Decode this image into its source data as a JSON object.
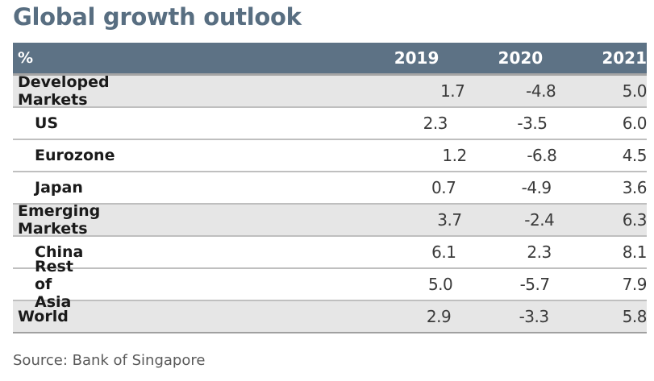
{
  "title": "Global growth outlook",
  "source": "Source: Bank of Singapore",
  "chart_data": {
    "type": "table",
    "title": "Global growth outlook",
    "unit_label": "%",
    "columns": [
      "2019",
      "2020",
      "2021"
    ],
    "rows": [
      {
        "label": "Developed Markets",
        "group": true,
        "values": [
          "1.7",
          "-4.8",
          "5.0"
        ]
      },
      {
        "label": "US",
        "group": false,
        "values": [
          "2.3",
          "-3.5",
          "6.0"
        ]
      },
      {
        "label": "Eurozone",
        "group": false,
        "values": [
          "1.2",
          "-6.8",
          "4.5"
        ]
      },
      {
        "label": "Japan",
        "group": false,
        "values": [
          "0.7",
          "-4.9",
          "3.6"
        ]
      },
      {
        "label": "Emerging Markets",
        "group": true,
        "values": [
          "3.7",
          "-2.4",
          "6.3"
        ]
      },
      {
        "label": "China",
        "group": false,
        "values": [
          "6.1",
          "2.3",
          "8.1"
        ]
      },
      {
        "label": "Rest of Asia",
        "group": false,
        "values": [
          "5.0",
          "-5.7",
          "7.9"
        ]
      },
      {
        "label": "World",
        "group": true,
        "values": [
          "2.9",
          "-3.3",
          "5.8"
        ]
      }
    ],
    "colors": {
      "header_bg": "#5d7285",
      "title": "#586e81",
      "group_row_bg": "#e6e6e6"
    }
  }
}
